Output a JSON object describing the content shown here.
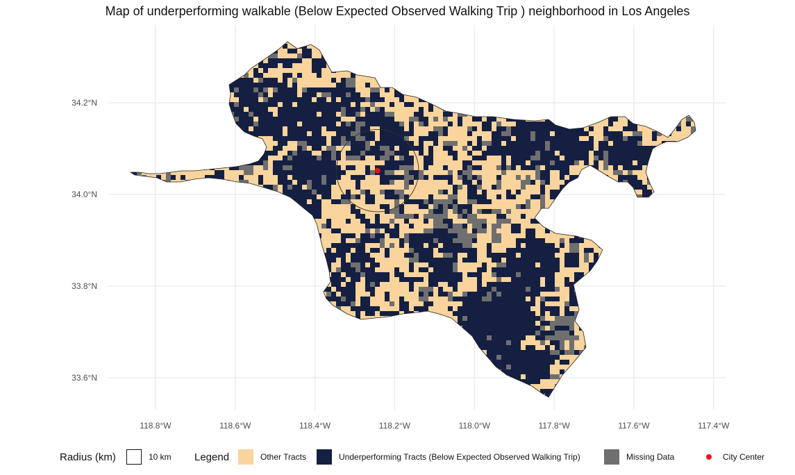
{
  "title": "Map of underperforming walkable (Below Expected  Observed Walking Trip ) neighborhood in Los Angeles",
  "map": {
    "lon_range": [
      -118.92,
      -117.37
    ],
    "lat_range": [
      33.53,
      34.37
    ],
    "lon_ticks": [
      {
        "value": -118.8,
        "label": "118.8°W"
      },
      {
        "value": -118.6,
        "label": "118.6°W"
      },
      {
        "value": -118.4,
        "label": "118.4°W"
      },
      {
        "value": -118.2,
        "label": "118.2°W"
      },
      {
        "value": -118.0,
        "label": "118.0°W"
      },
      {
        "value": -117.8,
        "label": "117.8°W"
      },
      {
        "value": -117.6,
        "label": "117.6°W"
      },
      {
        "value": -117.4,
        "label": "117.4°W"
      }
    ],
    "lat_ticks": [
      {
        "value": 34.2,
        "label": "34.2°N"
      },
      {
        "value": 34.0,
        "label": "34.0°N"
      },
      {
        "value": 33.8,
        "label": "33.8°N"
      },
      {
        "value": 33.6,
        "label": "33.6°N"
      }
    ],
    "grid": true,
    "city_center": {
      "lon": -118.243,
      "lat": 34.052
    },
    "radius_km": 10,
    "colors": {
      "other": "#f9d49c",
      "underperforming": "#141f42",
      "missing": "#6f6f6f",
      "center": "#e8141b",
      "outline": "#222222",
      "grid": "#ebebeb"
    }
  },
  "legend": {
    "radius_title": "Radius (km)",
    "radius_item": "10 km",
    "title": "Legend",
    "items": [
      {
        "label": "Other Tracts",
        "color": "#f9d49c"
      },
      {
        "label": "Underperforming Tracts (Below Expected Observed Walking Trip)",
        "color": "#141f42"
      },
      {
        "label": "Missing Data",
        "color": "#6f6f6f"
      },
      {
        "label": "City Center",
        "color": "#e8141b"
      }
    ]
  }
}
